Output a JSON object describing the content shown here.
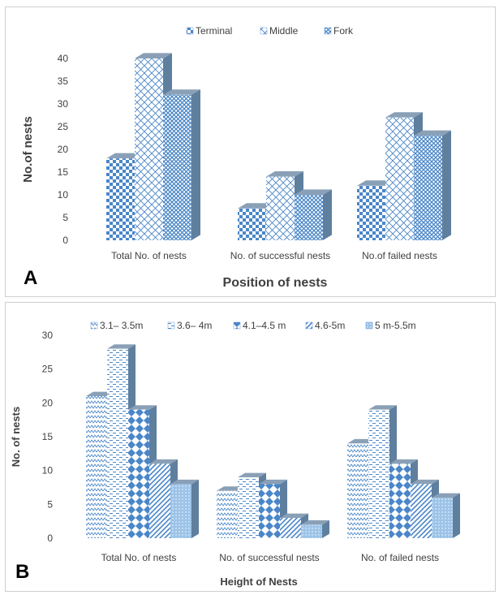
{
  "colors": {
    "border": "#cfcfcf",
    "pattern_blue": "#4a86c8",
    "pattern_light": "#9cc3e8",
    "side_shade": "#5f7f9f",
    "top_shade": "#8aa0b6",
    "axis_text": "#404040"
  },
  "panels": [
    {
      "letter": "A",
      "icon": "legend-pattern-swatch",
      "chart_data": {
        "type": "bar",
        "style": "3d-clustered-column",
        "title": "",
        "xlabel": "Position of nests",
        "ylabel": "No.of nests",
        "ylim": [
          0,
          40
        ],
        "yticks": [
          0,
          5,
          10,
          15,
          20,
          25,
          30,
          35,
          40
        ],
        "legend": "top",
        "grid": false,
        "categories": [
          "Total No. of nests",
          "No. of successful nests",
          "No.of failed nests"
        ],
        "series": [
          {
            "name": "Terminal",
            "pattern": "checker",
            "values": [
              18,
              7,
              12
            ]
          },
          {
            "name": "Middle",
            "pattern": "diagonal-cross",
            "values": [
              40,
              14,
              27
            ]
          },
          {
            "name": "Fork",
            "pattern": "fine-diamond",
            "values": [
              32,
              10,
              23
            ]
          }
        ]
      }
    },
    {
      "letter": "B",
      "icon": "legend-pattern-swatch",
      "chart_data": {
        "type": "bar",
        "style": "3d-clustered-column",
        "title": "",
        "xlabel": "Height of Nests",
        "ylabel": "No. of nests",
        "ylim": [
          0,
          30
        ],
        "yticks": [
          0,
          5,
          10,
          15,
          20,
          25,
          30
        ],
        "legend": "top",
        "grid": false,
        "categories": [
          "Total No. of nests",
          "No. of successful nests",
          "No. of failed  nests"
        ],
        "series": [
          {
            "name": "3.1– 3.5m",
            "pattern": "zigzag",
            "values": [
              21,
              7,
              14
            ]
          },
          {
            "name": "3.6– 4m",
            "pattern": "dashes",
            "values": [
              28,
              9,
              19
            ]
          },
          {
            "name": "4.1–4.5 m",
            "pattern": "diamond",
            "values": [
              19,
              8,
              11
            ]
          },
          {
            "name": "4.6-5m",
            "pattern": "diagonal",
            "values": [
              11,
              3,
              8
            ]
          },
          {
            "name": "5 m-5.5m",
            "pattern": "dots",
            "values": [
              8,
              2,
              6
            ]
          }
        ]
      }
    }
  ]
}
